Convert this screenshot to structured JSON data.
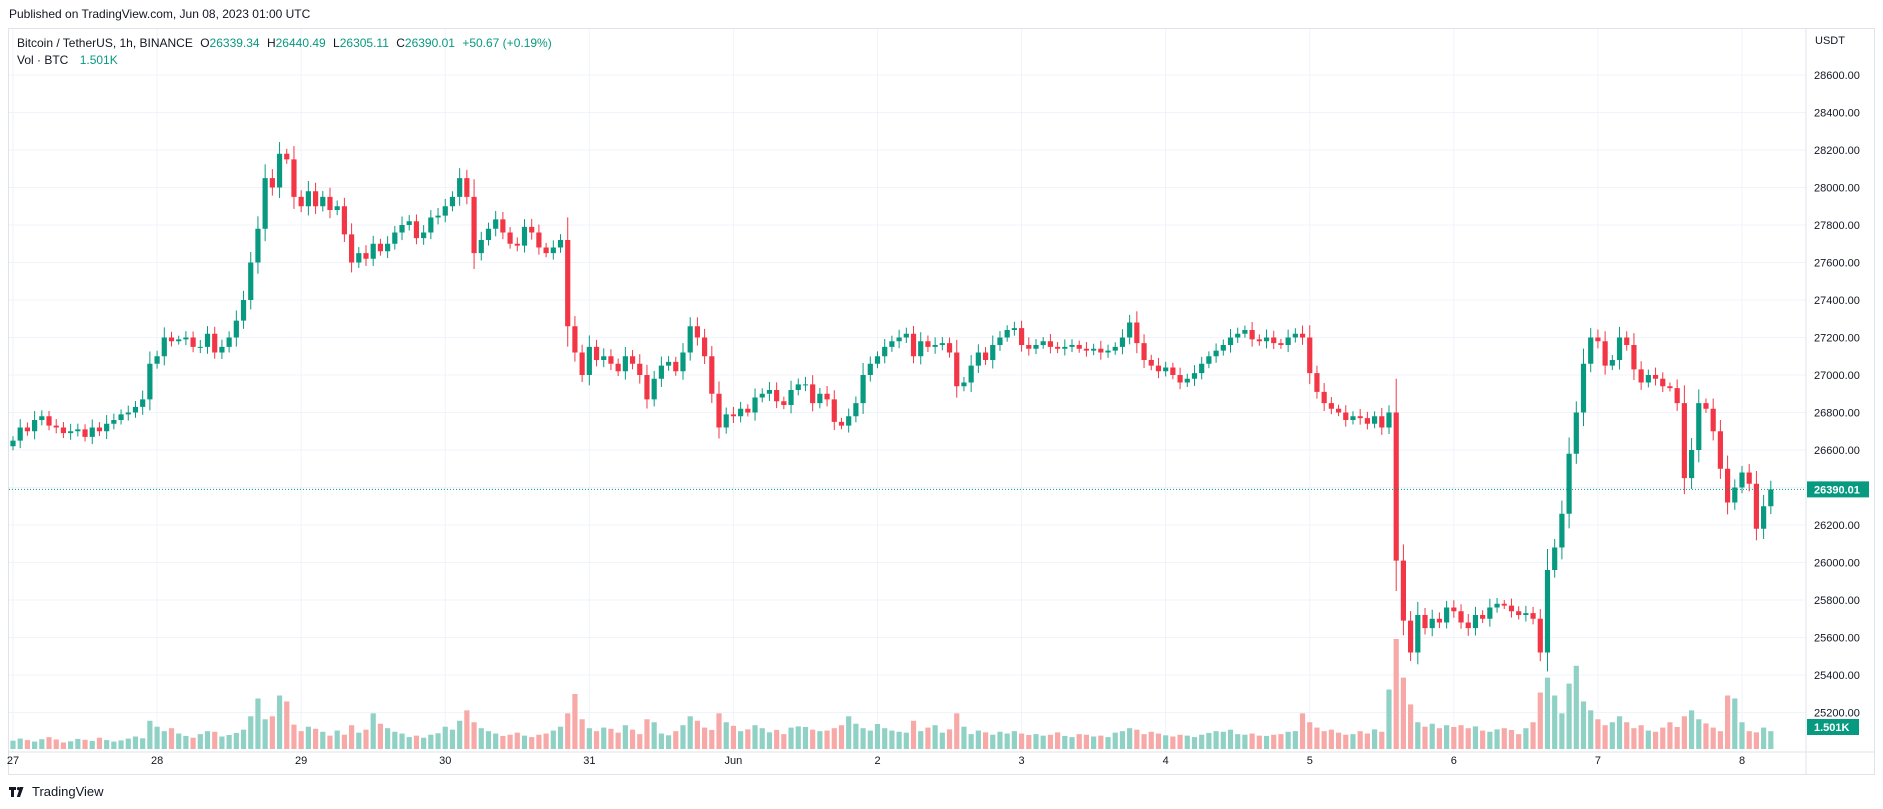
{
  "header": {
    "published": "Published on TradingView.com, Jun 08, 2023 01:00 UTC"
  },
  "legend": {
    "symbol": "Bitcoin / TetherUS, 1h, BINANCE",
    "o_label": "O",
    "o": "26339.34",
    "h_label": "H",
    "h": "26440.49",
    "l_label": "L",
    "l": "26305.11",
    "c_label": "C",
    "c": "26390.01",
    "change": "+50.67 (+0.19%)",
    "vol_label": "Vol · BTC",
    "vol": "1.501K"
  },
  "footer": {
    "brand": "TradingView",
    "logo_icon": "tradingview-logo-icon"
  },
  "colors": {
    "up": "#089981",
    "down": "#f23645",
    "up_vol": "#8fd1c5",
    "down_vol": "#f7a9a7",
    "grid": "#f0f3fa",
    "text": "#131722"
  },
  "chart_data": {
    "type": "candlestick",
    "interval": "1h",
    "y_unit": "USDT",
    "ylim": [
      25000,
      28760
    ],
    "y_ticks": [
      "25200.00",
      "25400.00",
      "25600.00",
      "25800.00",
      "26000.00",
      "26200.00",
      "26400.00",
      "26600.00",
      "26800.00",
      "27000.00",
      "27200.00",
      "27400.00",
      "27600.00",
      "27800.00",
      "28000.00",
      "28200.00",
      "28400.00",
      "28600.00"
    ],
    "last_price_label": "26390.01",
    "last_price": 26390.01,
    "last_volume_label": "1.501K",
    "x_ticks": [
      {
        "label": "27",
        "index": 0
      },
      {
        "label": "28",
        "index": 20
      },
      {
        "label": "29",
        "index": 40
      },
      {
        "label": "30",
        "index": 60
      },
      {
        "label": "31",
        "index": 80
      },
      {
        "label": "Jun",
        "index": 100
      },
      {
        "label": "2",
        "index": 120
      },
      {
        "label": "3",
        "index": 140
      },
      {
        "label": "4",
        "index": 160
      },
      {
        "label": "5",
        "index": 180
      },
      {
        "label": "6",
        "index": 200
      },
      {
        "label": "7",
        "index": 220
      },
      {
        "label": "8",
        "index": 240
      }
    ],
    "candles_per_tick": 20,
    "closes": [
      26650,
      26720,
      26700,
      26760,
      26780,
      26730,
      26720,
      26690,
      26700,
      26710,
      26670,
      26720,
      26700,
      26740,
      26760,
      26790,
      26800,
      26830,
      26870,
      27060,
      27100,
      27200,
      27180,
      27190,
      27200,
      27150,
      27150,
      27220,
      27120,
      27150,
      27200,
      27290,
      27400,
      27600,
      27780,
      28050,
      28000,
      28180,
      28150,
      27950,
      27900,
      27980,
      27900,
      27950,
      27880,
      27900,
      27750,
      27600,
      27650,
      27620,
      27700,
      27660,
      27700,
      27760,
      27800,
      27820,
      27730,
      27760,
      27840,
      27850,
      27900,
      27950,
      28050,
      27950,
      27650,
      27720,
      27780,
      27830,
      27760,
      27700,
      27690,
      27790,
      27760,
      27680,
      27650,
      27680,
      27720,
      27260,
      27120,
      27000,
      27150,
      27080,
      27100,
      27060,
      27020,
      27100,
      27060,
      27000,
      26870,
      26980,
      27050,
      27070,
      27020,
      27120,
      27260,
      27200,
      27100,
      26900,
      26720,
      26790,
      26780,
      26820,
      26800,
      26880,
      26900,
      26920,
      26860,
      26840,
      26920,
      26950,
      26950,
      26850,
      26900,
      26870,
      26750,
      26730,
      26780,
      26850,
      27000,
      27060,
      27100,
      27150,
      27180,
      27200,
      27220,
      27100,
      27180,
      27150,
      27160,
      27170,
      27120,
      26940,
      26960,
      27050,
      27120,
      27080,
      27160,
      27200,
      27240,
      27250,
      27160,
      27140,
      27160,
      27180,
      27150,
      27140,
      27150,
      27160,
      27140,
      27130,
      27140,
      27120,
      27130,
      27150,
      27200,
      27280,
      27170,
      27080,
      27050,
      27020,
      27040,
      27000,
      26960,
      26980,
      27010,
      27060,
      27100,
      27130,
      27160,
      27200,
      27220,
      27240,
      27190,
      27180,
      27200,
      27170,
      27160,
      27200,
      27220,
      27200,
      27010,
      26910,
      26850,
      26820,
      26800,
      26760,
      26780,
      26770,
      26740,
      26780,
      26720,
      26800,
      26010,
      25690,
      25520,
      25720,
      25650,
      25700,
      25680,
      25760,
      25740,
      25680,
      25650,
      25720,
      25700,
      25760,
      25780,
      25770,
      25740,
      25720,
      25730,
      25700,
      25520,
      25960,
      26080,
      26260,
      26580,
      26800,
      27060,
      27200,
      27180,
      27050,
      27080,
      27200,
      27160,
      27030,
      26960,
      27000,
      26980,
      26940,
      26930,
      26850,
      26450,
      26600,
      26850,
      26820,
      26700,
      26500,
      26320,
      26400,
      26480,
      26420,
      26180,
      26300,
      26390
    ],
    "volumes": [
      28,
      35,
      30,
      25,
      33,
      40,
      32,
      22,
      26,
      34,
      31,
      27,
      38,
      30,
      25,
      29,
      35,
      42,
      36,
      95,
      75,
      60,
      70,
      52,
      44,
      38,
      50,
      60,
      58,
      42,
      47,
      54,
      65,
      110,
      170,
      100,
      110,
      180,
      160,
      82,
      60,
      75,
      68,
      58,
      45,
      62,
      48,
      80,
      55,
      65,
      120,
      85,
      70,
      58,
      52,
      40,
      45,
      38,
      48,
      53,
      75,
      65,
      95,
      130,
      90,
      70,
      60,
      52,
      44,
      48,
      55,
      45,
      40,
      48,
      52,
      62,
      75,
      120,
      185,
      100,
      70,
      60,
      72,
      68,
      55,
      80,
      65,
      50,
      100,
      90,
      52,
      46,
      60,
      80,
      110,
      95,
      72,
      64,
      120,
      90,
      78,
      60,
      66,
      80,
      70,
      56,
      64,
      50,
      72,
      76,
      74,
      65,
      60,
      62,
      70,
      80,
      110,
      85,
      70,
      62,
      84,
      70,
      62,
      58,
      55,
      95,
      60,
      72,
      80,
      55,
      66,
      120,
      75,
      50,
      62,
      56,
      48,
      58,
      52,
      60,
      52,
      47,
      50,
      45,
      48,
      56,
      44,
      40,
      50,
      48,
      42,
      45,
      40,
      55,
      60,
      70,
      65,
      50,
      58,
      52,
      46,
      42,
      48,
      45,
      40,
      48,
      54,
      60,
      58,
      65,
      50,
      48,
      52,
      45,
      44,
      48,
      50,
      58,
      60,
      120,
      90,
      72,
      60,
      65,
      55,
      48,
      50,
      60,
      52,
      66,
      58,
      200,
      370,
      240,
      150,
      90,
      75,
      85,
      70,
      80,
      74,
      80,
      70,
      76,
      62,
      58,
      66,
      70,
      64,
      50,
      70,
      90,
      190,
      240,
      180,
      120,
      220,
      280,
      160,
      130,
      100,
      80,
      90,
      110,
      90,
      70,
      80,
      62,
      58,
      72,
      90,
      74,
      110,
      130,
      100,
      86,
      72,
      60,
      180,
      170,
      90,
      60,
      56,
      72,
      60
    ]
  }
}
